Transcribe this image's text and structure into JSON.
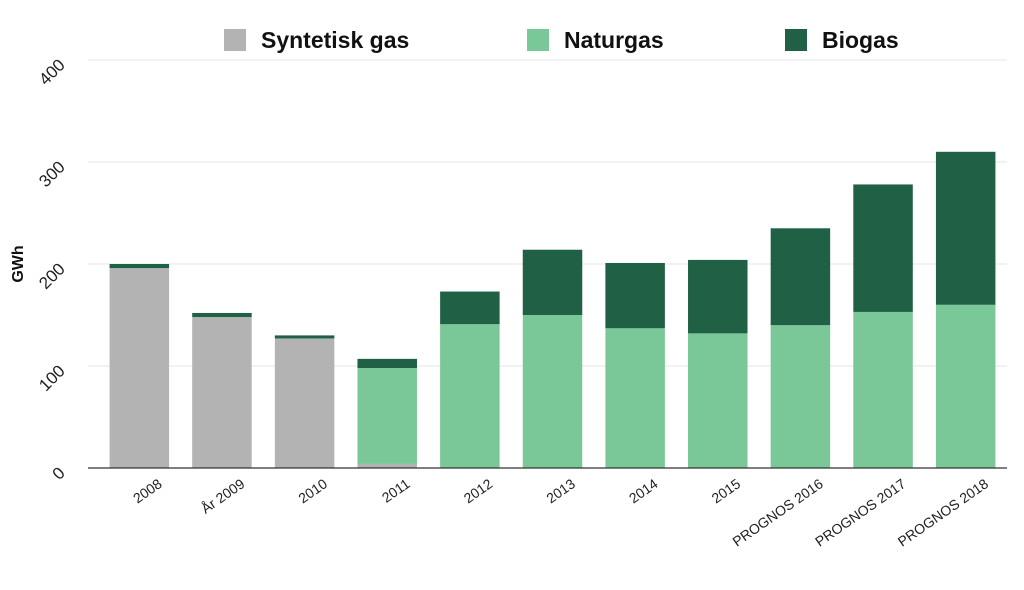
{
  "chart_data": {
    "type": "bar",
    "stacked": true,
    "title": "",
    "xlabel": "",
    "ylabel": "GWh",
    "ylim": [
      0,
      400
    ],
    "yticks": [
      0,
      100,
      200,
      300,
      400
    ],
    "grid": true,
    "legend_position": "top",
    "categories": [
      "2008",
      "År 2009",
      "2010",
      "2011",
      "2012",
      "2013",
      "2014",
      "2015",
      "PROGNOS 2016",
      "PROGNOS 2017",
      "PROGNOS 2018"
    ],
    "series": [
      {
        "name": "Syntetisk gas",
        "color": "#b3b3b3",
        "values": [
          196,
          148,
          127,
          4,
          0,
          0,
          0,
          0,
          0,
          0,
          0
        ]
      },
      {
        "name": "Naturgas",
        "color": "#7ac897",
        "values": [
          0,
          0,
          0,
          94,
          141,
          150,
          137,
          132,
          140,
          153,
          160
        ]
      },
      {
        "name": "Biogas",
        "color": "#206146",
        "values": [
          4,
          4,
          3,
          9,
          32,
          64,
          64,
          72,
          95,
          125,
          150
        ]
      }
    ]
  }
}
